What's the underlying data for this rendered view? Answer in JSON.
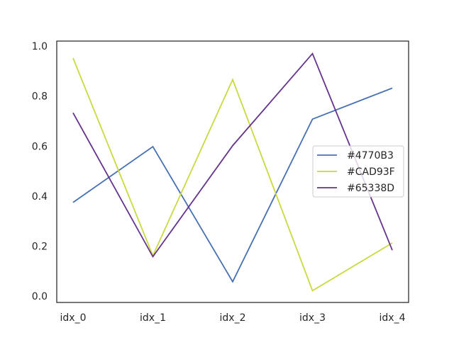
{
  "chart_data": {
    "type": "line",
    "categories": [
      "idx_0",
      "idx_1",
      "idx_2",
      "idx_3",
      "idx_4"
    ],
    "series": [
      {
        "name": "#4770B3",
        "color": "#4770B3",
        "values": [
          0.375,
          0.598,
          0.058,
          0.708,
          0.832
        ]
      },
      {
        "name": "#CAD93F",
        "color": "#CAD93F",
        "values": [
          0.952,
          0.162,
          0.866,
          0.022,
          0.213
        ]
      },
      {
        "name": "#65338D",
        "color": "#65338D",
        "values": [
          0.733,
          0.158,
          0.602,
          0.97,
          0.184
        ]
      }
    ],
    "yticks": [
      "0.0",
      "0.2",
      "0.4",
      "0.6",
      "0.8",
      "1.0"
    ],
    "ylim": [
      -0.025,
      1.02
    ],
    "grid": false,
    "legend_position": "center-right"
  }
}
